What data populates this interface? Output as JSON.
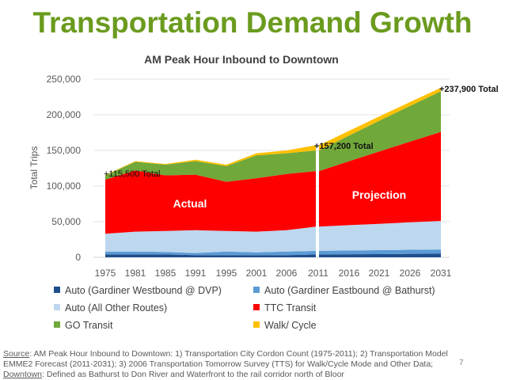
{
  "title": "Transportation Demand Growth",
  "chart_data": {
    "type": "area",
    "stacked": true,
    "title": "AM Peak Hour Inbound to Downtown",
    "ylabel": "Total Trips",
    "ylim": [
      0,
      250000
    ],
    "yticks": [
      "0",
      "50,000",
      "100,000",
      "150,000",
      "200,000",
      "250,000"
    ],
    "grid": true,
    "legend_position": "bottom",
    "segments": [
      {
        "label": "Actual",
        "categories": [
          "1975",
          "1981",
          "1985",
          "1991",
          "1995",
          "2001",
          "2006",
          "2011"
        ]
      },
      {
        "label": "Projection",
        "categories": [
          "2011",
          "2016",
          "2021",
          "2026",
          "2031"
        ]
      }
    ],
    "series": [
      {
        "name": "Auto (Gardiner Westbound @ DVP)",
        "color": "#1f4e8c",
        "actual": [
          4000,
          4000,
          4000,
          3000,
          3000,
          3000,
          3000,
          4000
        ],
        "projection": [
          4000,
          4300,
          4500,
          4800,
          5000
        ]
      },
      {
        "name": "Auto (Gardiner Eastbound @ Bathurst)",
        "color": "#5b9bd5",
        "actual": [
          4000,
          4000,
          3500,
          3000,
          5000,
          4000,
          5000,
          5000
        ],
        "projection": [
          5000,
          5300,
          5500,
          5800,
          6000
        ]
      },
      {
        "name": "Auto (All Other Routes)",
        "color": "#bdd7ee",
        "actual": [
          25000,
          28000,
          29500,
          32000,
          29000,
          29000,
          30000,
          34000
        ],
        "projection": [
          34000,
          35500,
          37000,
          38500,
          40000
        ]
      },
      {
        "name": "TTC Transit",
        "color": "#ff0000",
        "actual": [
          76000,
          86000,
          78000,
          78000,
          69000,
          75000,
          79000,
          78000
        ],
        "projection": [
          78000,
          89800,
          101500,
          113300,
          125000
        ]
      },
      {
        "name": "GO Transit",
        "color": "#70a83a",
        "actual": [
          6000,
          12000,
          15000,
          19000,
          22000,
          32000,
          29000,
          29000
        ],
        "projection": [
          29000,
          36000,
          43000,
          50000,
          57000
        ]
      },
      {
        "name": "Walk/ Cycle",
        "color": "#ffc000",
        "actual": [
          500,
          1000,
          1000,
          2000,
          2000,
          3000,
          4000,
          7200
        ],
        "projection": [
          7200,
          6600,
          6100,
          5500,
          4900
        ]
      }
    ],
    "annotations": [
      "+115,500 Total",
      "+157,200 Total",
      "+237,900 Total"
    ]
  },
  "source": {
    "label": "Source",
    "text": ": AM Peak Hour Inbound to Downtown: 1) Transportation City Cordon Count (1975-2011); 2) Transportation Model EMME2 Forecast (2011-2031); 3) 2006 Transportation Tomorrow Survey (TTS) for Walk/Cycle Mode and Other Data;",
    "downtown_label": "Downtown",
    "downtown_text": ":  Defined as Bathurst to Don River and Waterfront to the rail corridor north of Bloor"
  },
  "page_number": "7"
}
